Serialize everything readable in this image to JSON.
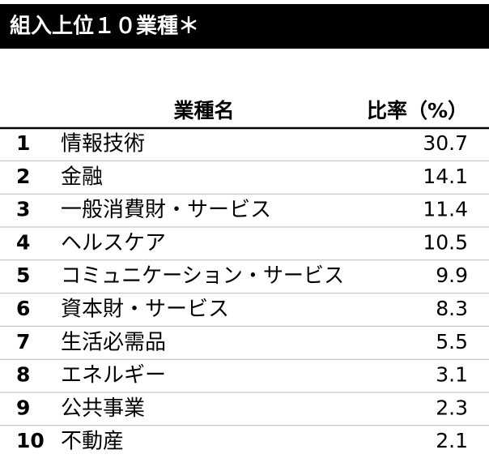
{
  "header": {
    "title": "組入上位１０業種＊"
  },
  "table": {
    "columns": [
      "業種名",
      "比率（%）"
    ],
    "rows": [
      [
        "1",
        "情報技術",
        30.7
      ],
      [
        "2",
        "金融",
        14.1
      ],
      [
        "3",
        "一般消費財・サービス",
        11.4
      ],
      [
        "4",
        "ヘルスケア",
        10.5
      ],
      [
        "5",
        "コミュニケーション・サービス",
        9.9
      ],
      [
        "6",
        "資本財・サービス",
        8.3
      ],
      [
        "7",
        "生活必需品",
        5.5
      ],
      [
        "8",
        "エネルギー",
        3.1
      ],
      [
        "9",
        "公共事業",
        2.3
      ],
      [
        "10",
        "不動産",
        2.1
      ]
    ]
  }
}
